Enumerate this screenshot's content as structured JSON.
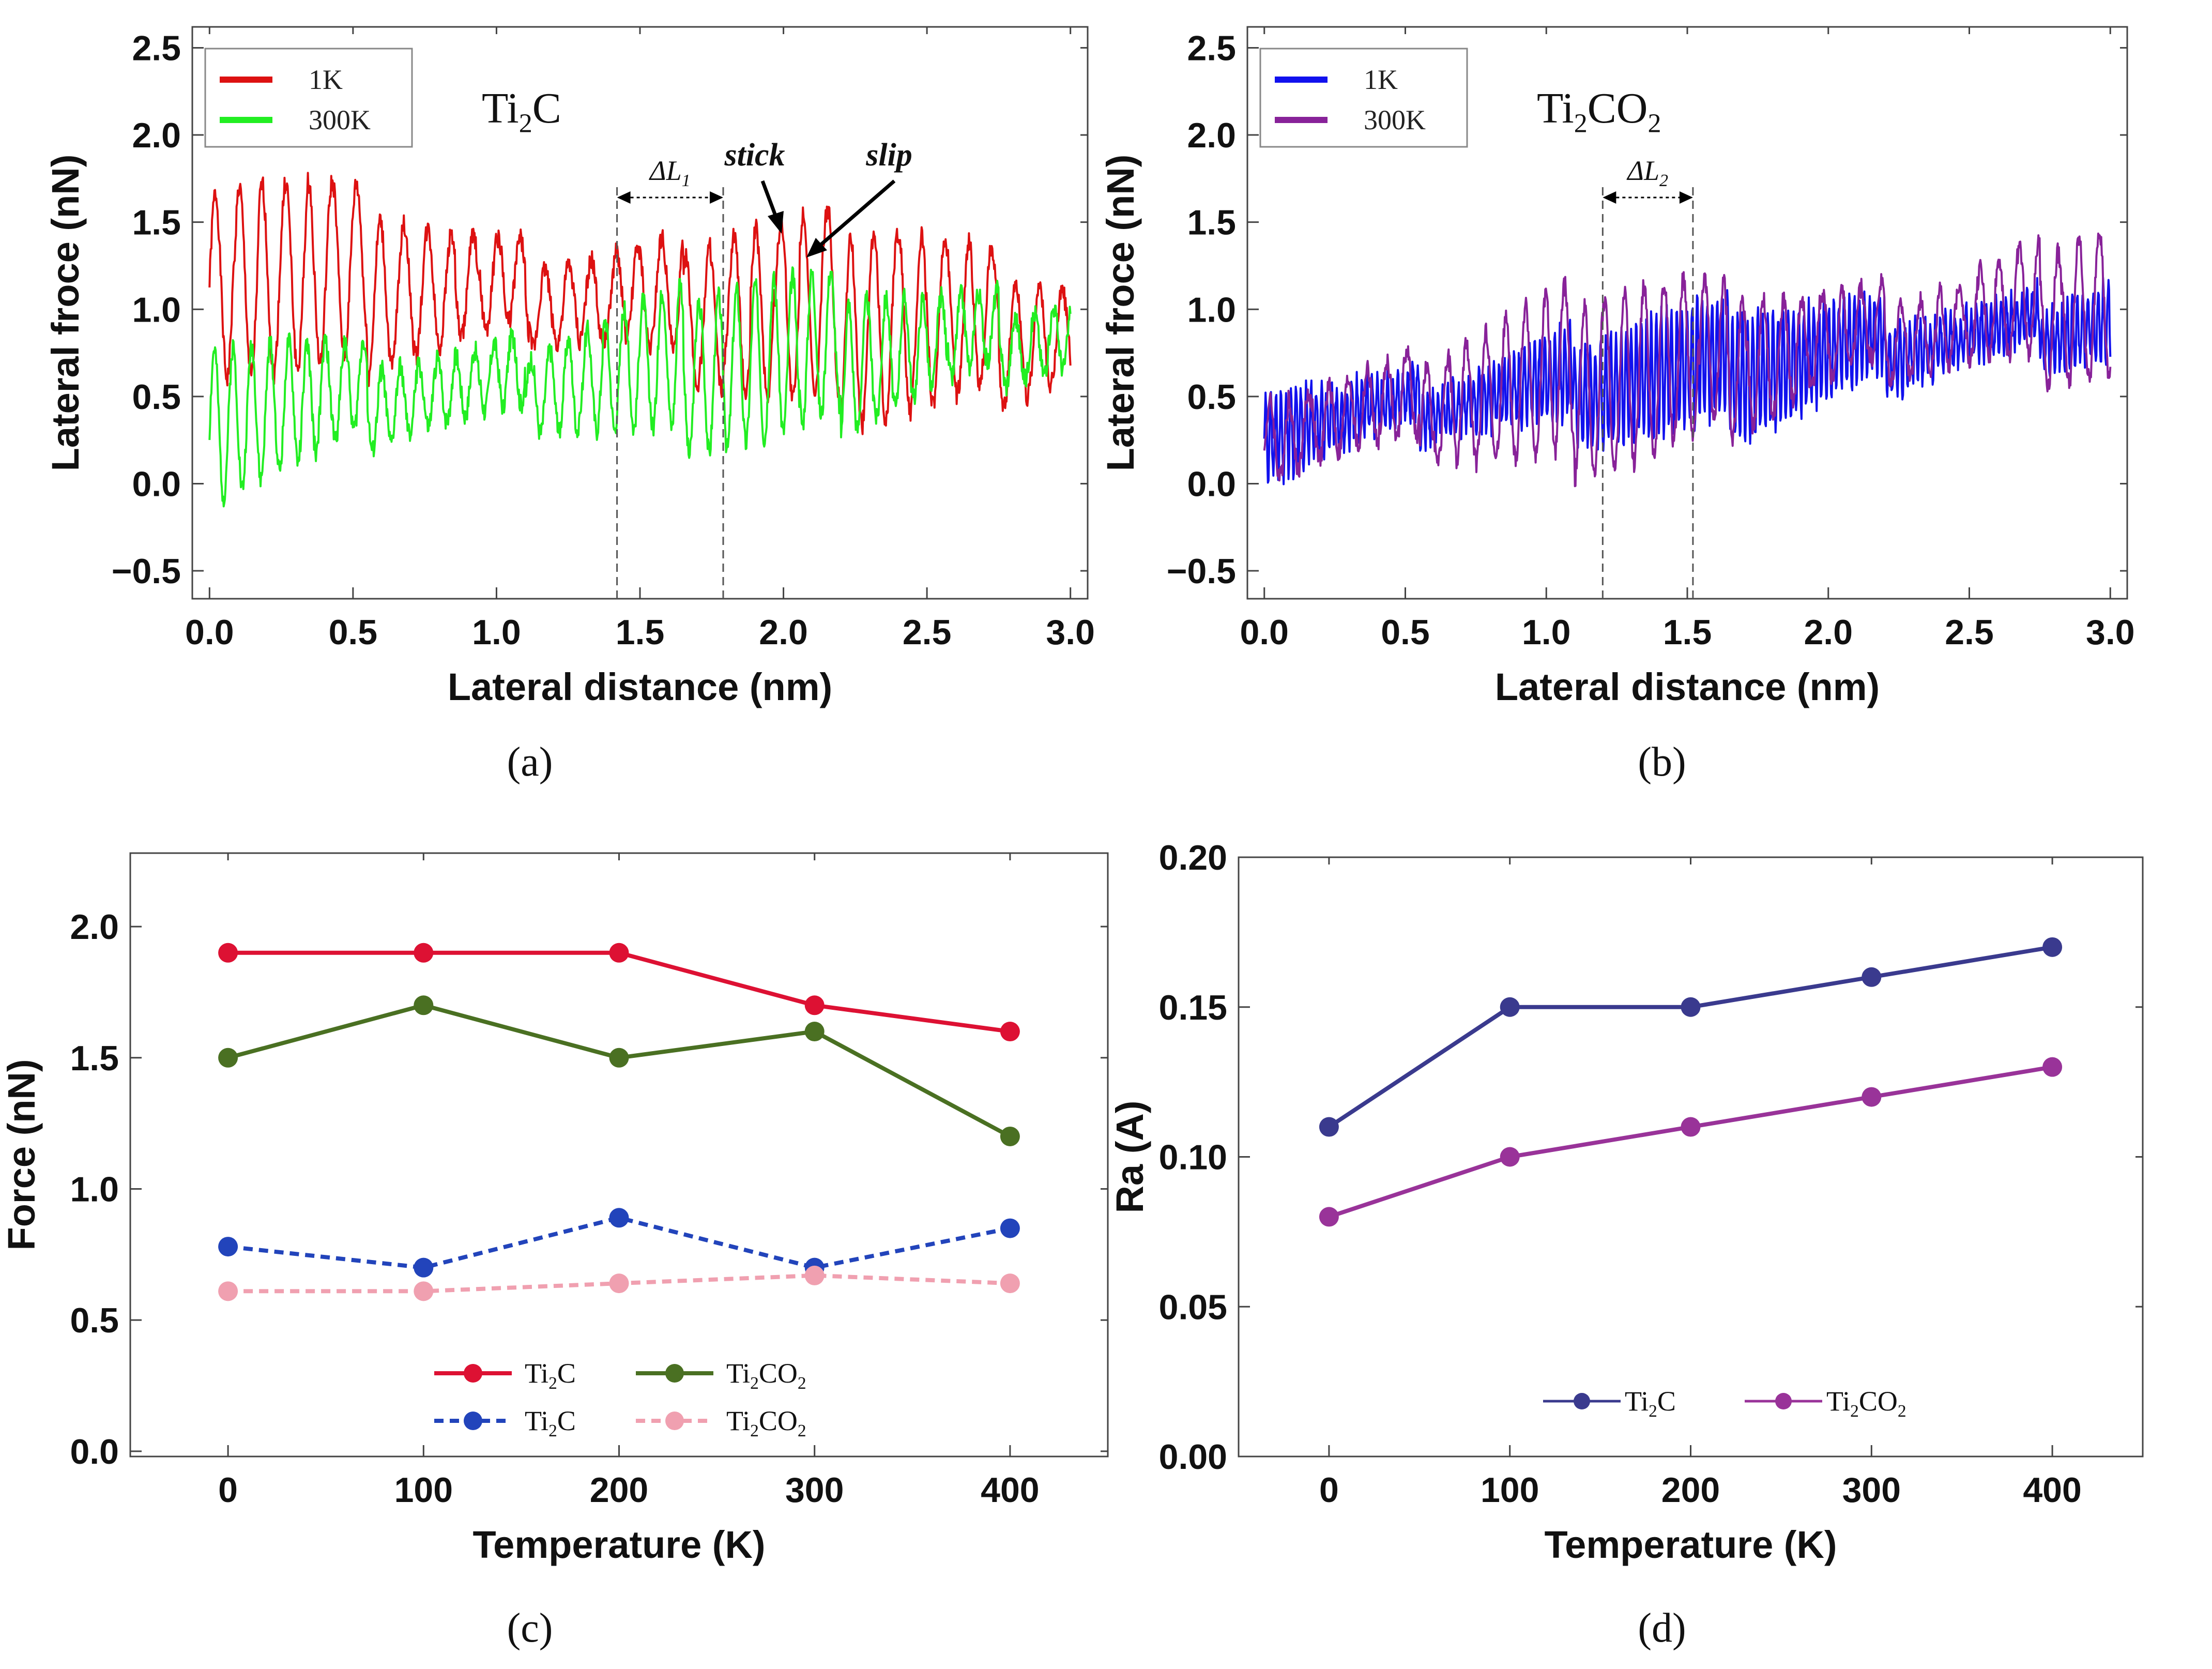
{
  "chart_data": [
    {
      "type": "line",
      "panel": "(a)",
      "title": "Ti2C",
      "title_main": "Ti",
      "title_sub": "2",
      "title_rest": "C",
      "xlabel": "Lateral distance (nm)",
      "ylabel": "Lateral froce (nN)",
      "xlim": [
        -0.06,
        3.06
      ],
      "ylim": [
        -0.66,
        2.62
      ],
      "xticks": [
        "0.0",
        "0.5",
        "1.0",
        "1.5",
        "2.0",
        "2.5",
        "3.0"
      ],
      "yticks": [
        "−0.5",
        "0.0",
        "0.5",
        "1.0",
        "1.5",
        "2.0",
        "2.5"
      ],
      "series": [
        {
          "name": "1K",
          "color": "#dd1111",
          "x0": 0.0,
          "x1": 3.0,
          "period": 0.082,
          "mean": 0.95,
          "amp": 0.55,
          "trend": -0.12,
          "seed": 1
        },
        {
          "name": "300K",
          "color": "#22ee22",
          "x0": 0.0,
          "x1": 3.0,
          "period": 0.065,
          "mean": 0.55,
          "amp": 0.45,
          "trend": 0.15,
          "seed": 2
        }
      ],
      "annotations": {
        "delta": "ΔL1",
        "delta_main": "ΔL",
        "delta_sub": "1",
        "stick": "stick",
        "slip": "slip",
        "x_left": 1.42,
        "x_right": 1.79
      }
    },
    {
      "type": "line",
      "panel": "(b)",
      "title": "Ti2CO2",
      "title_main": "Ti",
      "title_sub": "2",
      "title_rest": "CO",
      "title_sub2": "2",
      "xlabel": "Lateral distance (nm)",
      "ylabel": "Lateral froce (nN)",
      "xlim": [
        -0.06,
        3.06
      ],
      "ylim": [
        -0.66,
        2.62
      ],
      "xticks": [
        "0.0",
        "0.5",
        "1.0",
        "1.5",
        "2.0",
        "2.5",
        "3.0"
      ],
      "yticks": [
        "−0.5",
        "0.0",
        "0.5",
        "1.0",
        "1.5",
        "2.0",
        "2.5"
      ],
      "series": [
        {
          "name": "1K",
          "color": "#1111ee",
          "x0": 0.0,
          "x1": 3.0,
          "period": 0.018,
          "mean": 0.55,
          "amp": 0.35,
          "trend": 0.2,
          "seed": 3
        },
        {
          "name": "300K",
          "color": "#882299",
          "x0": 0.0,
          "x1": 3.0,
          "period": 0.07,
          "mean": 0.6,
          "amp": 0.5,
          "trend": 0.25,
          "seed": 4
        }
      ],
      "annotations": {
        "delta": "ΔL2",
        "delta_main": "ΔL",
        "delta_sub": "2",
        "x_left": 1.2,
        "x_right": 1.52
      }
    },
    {
      "type": "line",
      "panel": "(c)",
      "xlabel": "Temperature (K)",
      "ylabel": "Force (nN)",
      "xlim": [
        -50,
        450
      ],
      "ylim": [
        -0.02,
        2.28
      ],
      "categories": [
        0,
        100,
        200,
        300,
        400
      ],
      "xticks": [
        "0",
        "100",
        "200",
        "300",
        "400"
      ],
      "yticks": [
        "0.0",
        "0.5",
        "1.0",
        "1.5",
        "2.0"
      ],
      "series": [
        {
          "name": "Ti2C",
          "name_main": "Ti",
          "name_sub": "2",
          "name_rest": "C",
          "color": "#dd1133",
          "dashed": false,
          "values": [
            1.9,
            1.9,
            1.9,
            1.7,
            1.6
          ]
        },
        {
          "name": "Ti2CO2",
          "name_main": "Ti",
          "name_sub": "2",
          "name_rest": "CO",
          "name_sub2": "2",
          "color": "#4a7022",
          "dashed": false,
          "values": [
            1.5,
            1.7,
            1.5,
            1.6,
            1.2
          ]
        },
        {
          "name": "Ti2C",
          "name_main": "Ti",
          "name_sub": "2",
          "name_rest": "C",
          "color": "#2244bb",
          "dashed": true,
          "values": [
            0.78,
            0.7,
            0.89,
            0.7,
            0.85
          ]
        },
        {
          "name": "Ti2CO2",
          "name_main": "Ti",
          "name_sub": "2",
          "name_rest": "CO",
          "name_sub2": "2",
          "color": "#f0a0b0",
          "dashed": true,
          "values": [
            0.61,
            0.61,
            0.64,
            0.67,
            0.64
          ]
        }
      ]
    },
    {
      "type": "line",
      "panel": "(d)",
      "xlabel": "Temperature (K)",
      "ylabel": "Ra (A)",
      "xlim": [
        -50,
        450
      ],
      "ylim": [
        0.0,
        0.2
      ],
      "categories": [
        0,
        100,
        200,
        300,
        400
      ],
      "xticks": [
        "0",
        "100",
        "200",
        "300",
        "400"
      ],
      "yticks": [
        "0.00",
        "0.05",
        "0.10",
        "0.15",
        "0.20"
      ],
      "series": [
        {
          "name": "Ti2C",
          "name_main": "Ti",
          "name_sub": "2",
          "name_rest": "C",
          "color": "#3a3a8e",
          "values": [
            0.11,
            0.15,
            0.15,
            0.16,
            0.17
          ]
        },
        {
          "name": "Ti2CO2",
          "name_main": "Ti",
          "name_sub": "2",
          "name_rest": "CO",
          "name_sub2": "2",
          "color": "#993399",
          "values": [
            0.08,
            0.1,
            0.11,
            0.12,
            0.13
          ]
        }
      ]
    }
  ]
}
